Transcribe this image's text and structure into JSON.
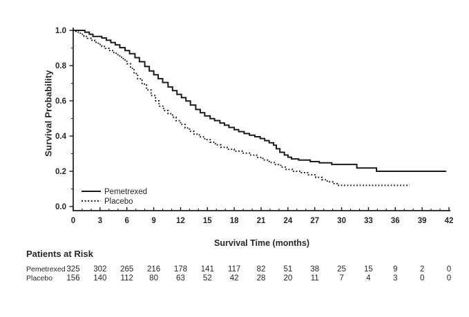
{
  "chart_data": {
    "type": "line",
    "subtype": "kaplan_meier_step",
    "title": "",
    "xlabel": "Survival Time (months)",
    "ylabel": "Survival Probability",
    "xlim": [
      0,
      42
    ],
    "ylim": [
      0.0,
      1.0
    ],
    "grid": false,
    "axis_color": "#1a1a1a",
    "text_color": "#262626",
    "x_tick_values": [
      0,
      3,
      6,
      9,
      12,
      15,
      18,
      21,
      24,
      27,
      30,
      33,
      36,
      39,
      42
    ],
    "x_tick_labels": [
      "0",
      "3",
      "6",
      "9",
      "12",
      "15",
      "18",
      "21",
      "24",
      "27",
      "30",
      "33",
      "36",
      "39",
      "42"
    ],
    "x_minor_tick_step": 1,
    "y_tick_values": [
      0.0,
      0.2,
      0.4,
      0.6,
      0.8,
      1.0
    ],
    "y_tick_labels": [
      "0.0",
      "0.2",
      "0.4",
      "0.6",
      "0.8",
      "1.0"
    ],
    "y_minor_tick_values": [
      0.1,
      0.3,
      0.5,
      0.7,
      0.9
    ],
    "legend": {
      "position": "lower_left",
      "entries": [
        {
          "label": "Pemetrexed",
          "line_style": "solid"
        },
        {
          "label": "Placebo",
          "line_style": "dotted"
        }
      ]
    },
    "series": [
      {
        "name": "Pemetrexed",
        "line_style": "solid",
        "color": "#1a1a1a",
        "points": [
          [
            0,
            1.0
          ],
          [
            0.85,
            1.0
          ],
          [
            1.3,
            0.99
          ],
          [
            1.8,
            0.978
          ],
          [
            2.2,
            0.966
          ],
          [
            3.2,
            0.957
          ],
          [
            3.7,
            0.944
          ],
          [
            4.2,
            0.931
          ],
          [
            4.7,
            0.918
          ],
          [
            5.2,
            0.902
          ],
          [
            5.8,
            0.885
          ],
          [
            6.3,
            0.868
          ],
          [
            6.9,
            0.845
          ],
          [
            7.4,
            0.822
          ],
          [
            8.0,
            0.795
          ],
          [
            8.5,
            0.77
          ],
          [
            9.0,
            0.748
          ],
          [
            9.5,
            0.726
          ],
          [
            10.0,
            0.704
          ],
          [
            10.6,
            0.679
          ],
          [
            11.1,
            0.658
          ],
          [
            11.6,
            0.637
          ],
          [
            12.1,
            0.618
          ],
          [
            12.6,
            0.599
          ],
          [
            13.1,
            0.576
          ],
          [
            13.7,
            0.551
          ],
          [
            14.2,
            0.532
          ],
          [
            14.7,
            0.514
          ],
          [
            15.3,
            0.499
          ],
          [
            15.8,
            0.488
          ],
          [
            16.4,
            0.474
          ],
          [
            16.9,
            0.462
          ],
          [
            17.4,
            0.449
          ],
          [
            18.0,
            0.436
          ],
          [
            18.5,
            0.425
          ],
          [
            19.1,
            0.414
          ],
          [
            19.7,
            0.405
          ],
          [
            20.3,
            0.396
          ],
          [
            20.9,
            0.386
          ],
          [
            21.4,
            0.374
          ],
          [
            21.9,
            0.362
          ],
          [
            22.4,
            0.348
          ],
          [
            22.7,
            0.328
          ],
          [
            23.1,
            0.308
          ],
          [
            23.6,
            0.292
          ],
          [
            24.0,
            0.28
          ],
          [
            24.4,
            0.27
          ],
          [
            25.2,
            0.264
          ],
          [
            26.5,
            0.255
          ],
          [
            27.5,
            0.248
          ],
          [
            28.9,
            0.239
          ],
          [
            31.7,
            0.219
          ],
          [
            33.9,
            0.2
          ],
          [
            41.7,
            0.2
          ]
        ]
      },
      {
        "name": "Placebo",
        "line_style": "dotted",
        "color": "#1a1a1a",
        "points": [
          [
            0,
            1.0
          ],
          [
            0.3,
            0.99
          ],
          [
            0.8,
            0.978
          ],
          [
            1.2,
            0.966
          ],
          [
            1.6,
            0.955
          ],
          [
            2.0,
            0.944
          ],
          [
            2.4,
            0.932
          ],
          [
            2.8,
            0.92
          ],
          [
            3.2,
            0.909
          ],
          [
            3.6,
            0.898
          ],
          [
            4.0,
            0.886
          ],
          [
            4.4,
            0.874
          ],
          [
            4.8,
            0.862
          ],
          [
            5.2,
            0.848
          ],
          [
            5.6,
            0.832
          ],
          [
            6.0,
            0.81
          ],
          [
            6.4,
            0.785
          ],
          [
            6.8,
            0.755
          ],
          [
            7.2,
            0.725
          ],
          [
            7.7,
            0.695
          ],
          [
            8.2,
            0.662
          ],
          [
            8.7,
            0.63
          ],
          [
            9.2,
            0.6
          ],
          [
            9.6,
            0.57
          ],
          [
            10.1,
            0.545
          ],
          [
            10.6,
            0.527
          ],
          [
            11.1,
            0.507
          ],
          [
            11.5,
            0.487
          ],
          [
            12.0,
            0.466
          ],
          [
            12.5,
            0.446
          ],
          [
            13.0,
            0.427
          ],
          [
            13.5,
            0.411
          ],
          [
            14.1,
            0.395
          ],
          [
            14.7,
            0.38
          ],
          [
            15.3,
            0.365
          ],
          [
            15.9,
            0.35
          ],
          [
            16.5,
            0.336
          ],
          [
            17.2,
            0.325
          ],
          [
            18.0,
            0.314
          ],
          [
            18.9,
            0.303
          ],
          [
            19.7,
            0.292
          ],
          [
            20.5,
            0.279
          ],
          [
            21.2,
            0.264
          ],
          [
            21.9,
            0.25
          ],
          [
            22.6,
            0.238
          ],
          [
            23.2,
            0.224
          ],
          [
            23.8,
            0.21
          ],
          [
            24.5,
            0.2
          ],
          [
            25.5,
            0.192
          ],
          [
            26.3,
            0.18
          ],
          [
            27.1,
            0.166
          ],
          [
            27.8,
            0.152
          ],
          [
            28.4,
            0.14
          ],
          [
            29.0,
            0.13
          ],
          [
            29.5,
            0.12
          ],
          [
            37.6,
            0.12
          ]
        ]
      }
    ],
    "risk_table": {
      "title": "Patients at Risk",
      "times": [
        0,
        3,
        6,
        9,
        12,
        15,
        18,
        21,
        24,
        27,
        30,
        33,
        36,
        39,
        42
      ],
      "rows": [
        {
          "label": "Pemetrexed",
          "counts": [
            325,
            302,
            265,
            216,
            178,
            141,
            117,
            82,
            51,
            38,
            25,
            15,
            9,
            2,
            0
          ]
        },
        {
          "label": "Placebo",
          "counts": [
            156,
            140,
            112,
            80,
            63,
            52,
            42,
            28,
            20,
            11,
            7,
            4,
            3,
            0,
            0
          ]
        }
      ]
    }
  }
}
